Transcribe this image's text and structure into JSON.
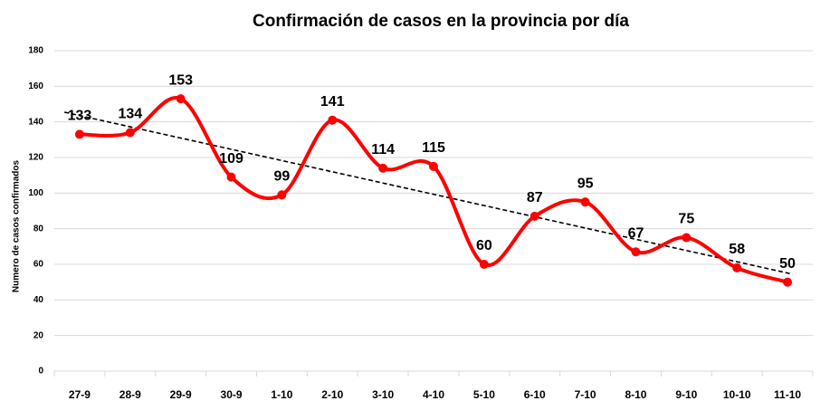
{
  "chart_data": {
    "type": "line",
    "title": "Confirmación de casos en la provincia por día",
    "y_label": "Numero de casos confirmados",
    "categories": [
      "27-9",
      "28-9",
      "29-9",
      "30-9",
      "1-10",
      "2-10",
      "3-10",
      "4-10",
      "5-10",
      "6-10",
      "7-10",
      "8-10",
      "9-10",
      "10-10",
      "11-10"
    ],
    "values": [
      133,
      134,
      153,
      109,
      99,
      141,
      114,
      115,
      60,
      87,
      95,
      67,
      75,
      58,
      50
    ],
    "color": "#ff0000",
    "smooth": true,
    "trendline": "linear",
    "ylim": [
      0,
      180
    ],
    "yticks": [
      0,
      20,
      40,
      60,
      80,
      100,
      120,
      140,
      160,
      180
    ],
    "grid": true
  }
}
